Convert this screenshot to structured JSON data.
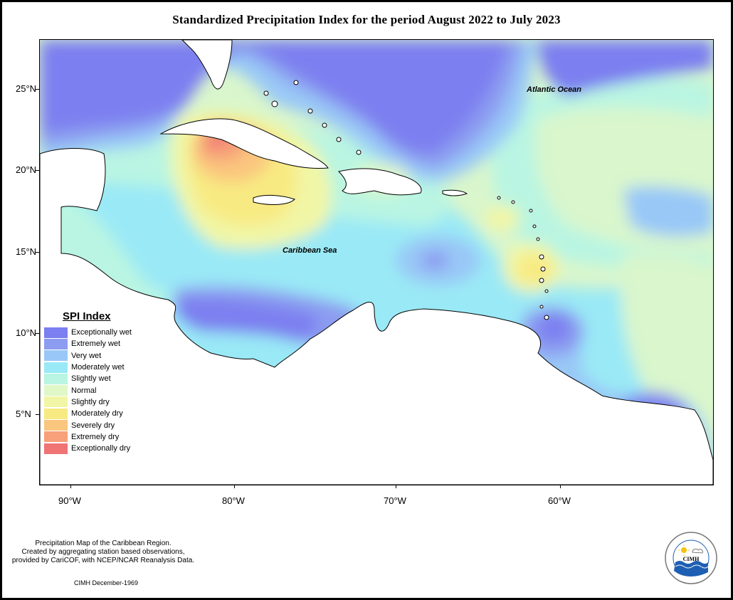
{
  "title": "Standardized Precipitation Index for the period August 2022 to July 2023",
  "map": {
    "latitude_ticks": [
      "25°N",
      "20°N",
      "15°N",
      "10°N",
      "5°N"
    ],
    "longitude_ticks": [
      "90°W",
      "80°W",
      "70°W",
      "60°W"
    ],
    "labels": {
      "atlantic": "Atlantic Ocean",
      "caribbean": "Caribbean Sea"
    }
  },
  "legend": {
    "title": "SPI Index",
    "items": [
      {
        "label": "Exceptionally wet",
        "color": "#7b7ff0"
      },
      {
        "label": "Extremely wet",
        "color": "#8c9cf0"
      },
      {
        "label": "Very wet",
        "color": "#99c8f7"
      },
      {
        "label": "Moderately wet",
        "color": "#9ae9f6"
      },
      {
        "label": "Slightly wet",
        "color": "#b9f5e2"
      },
      {
        "label": "Normal",
        "color": "#e0f8c8"
      },
      {
        "label": "Slightly dry",
        "color": "#f1f6a6"
      },
      {
        "label": "Moderately dry",
        "color": "#f8ea82"
      },
      {
        "label": "Severely dry",
        "color": "#fac67e"
      },
      {
        "label": "Extremely dry",
        "color": "#f7a079"
      },
      {
        "label": "Exceptionally dry",
        "color": "#f07474"
      }
    ]
  },
  "footnote": {
    "line1": "Precipitation Map of the Caribbean Region.",
    "line2": "Created by aggregating station based observations,",
    "line3": "provided by CariCOF, with NCEP/NCAR Reanalysis Data."
  },
  "date_stamp": "CIMH December-1969",
  "logo": {
    "text": "CIMH",
    "ring_text": "Caribbean Institute for Meteorology and Hydrology"
  }
}
